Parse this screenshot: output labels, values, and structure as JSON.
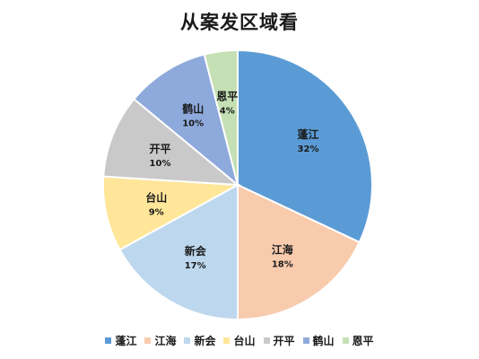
{
  "chart_data": {
    "type": "pie",
    "title": "从案发区域看",
    "categories": [
      "蓬江",
      "江海",
      "新会",
      "台山",
      "开平",
      "鹤山",
      "恩平"
    ],
    "values": [
      32,
      18,
      17,
      9,
      10,
      10,
      4
    ],
    "value_labels": [
      "32%",
      "18%",
      "17%",
      "9%",
      "10%",
      "10%",
      "4%"
    ],
    "colors": [
      "#5B9BD5",
      "#F8CBAD",
      "#BDD7EE",
      "#FFE699",
      "#C9C9C9",
      "#8EA9DB",
      "#C5E0B4"
    ],
    "legend_position": "bottom",
    "start_angle": "12 o'clock, clockwise"
  }
}
